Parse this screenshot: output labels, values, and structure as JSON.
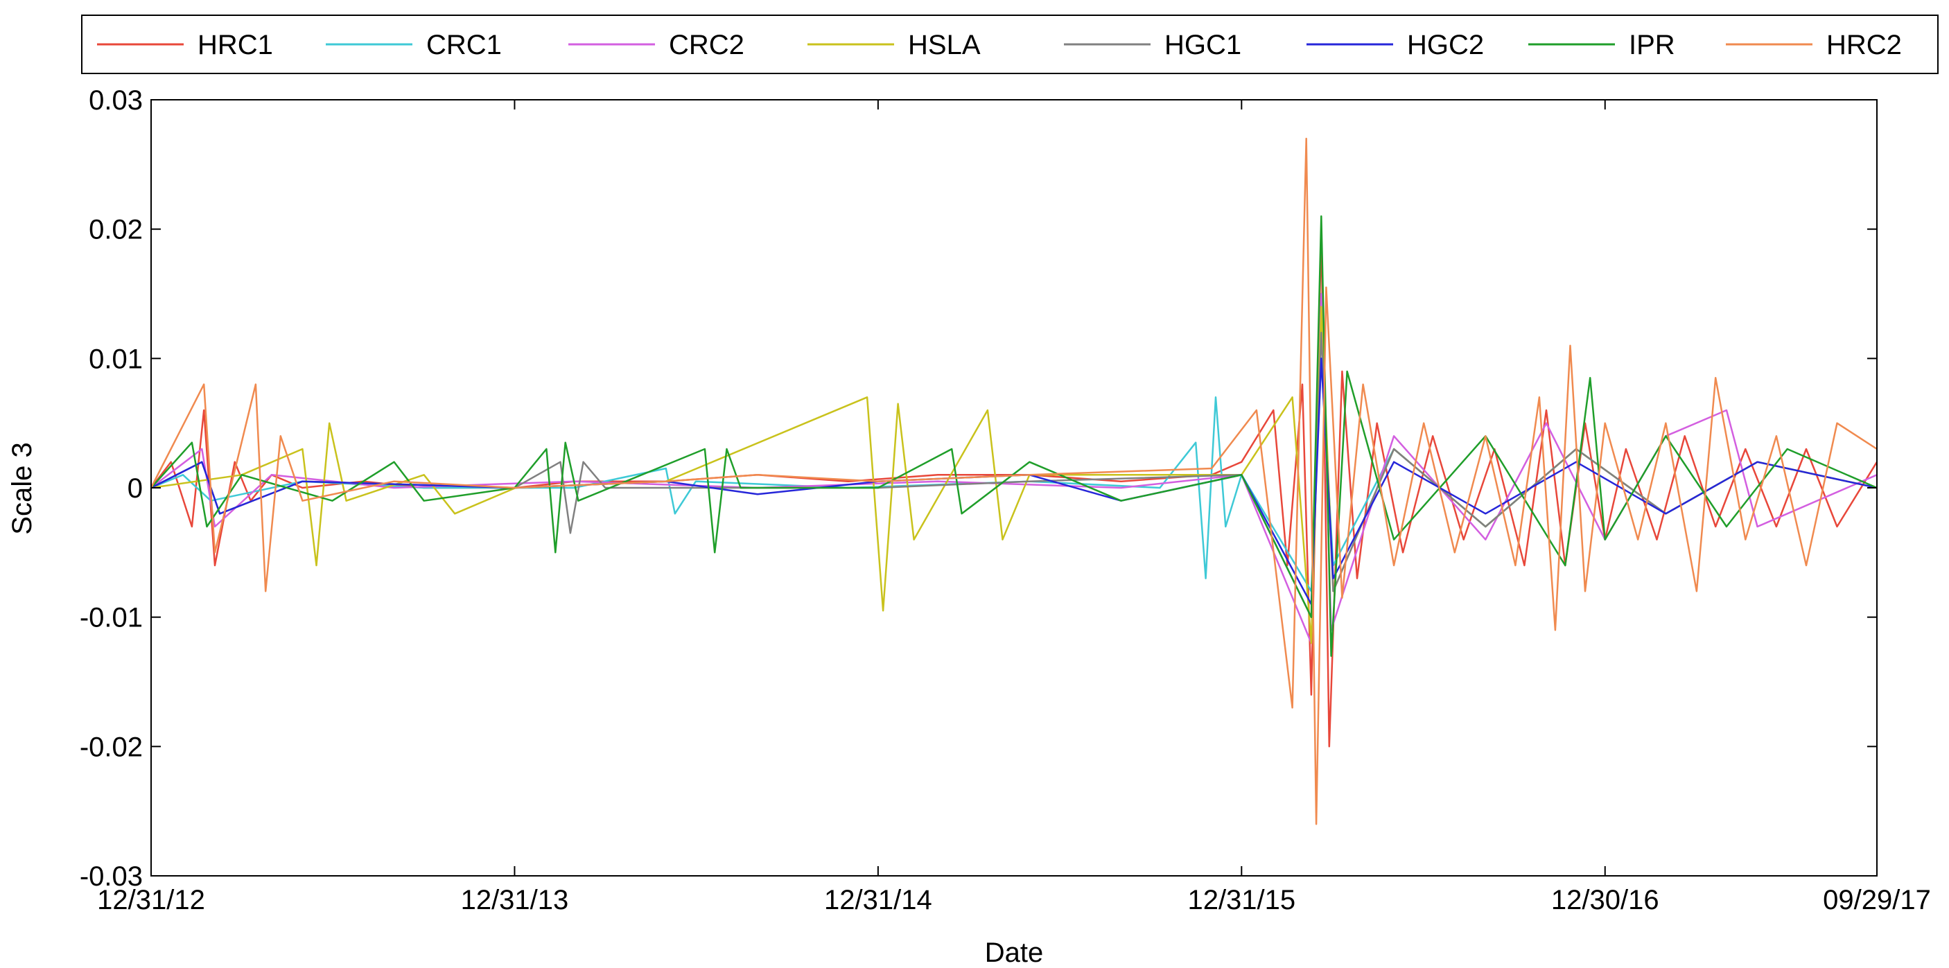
{
  "chart_data": {
    "type": "line",
    "title": "",
    "xlabel": "Date",
    "ylabel": "Scale 3",
    "ylim": [
      -0.03,
      0.03
    ],
    "xlim": [
      "2012-12-31",
      "2017-09-29"
    ],
    "grid": false,
    "legend_position": "top",
    "x_ticks": [
      {
        "date": "2012-12-31",
        "label": "12/31/12"
      },
      {
        "date": "2013-12-31",
        "label": "12/31/13"
      },
      {
        "date": "2014-12-31",
        "label": "12/31/14"
      },
      {
        "date": "2015-12-31",
        "label": "12/31/15"
      },
      {
        "date": "2016-12-30",
        "label": "12/30/16"
      },
      {
        "date": "2017-09-29",
        "label": "09/29/17"
      }
    ],
    "y_ticks": [
      {
        "value": 0.03,
        "label": "0.03"
      },
      {
        "value": 0.02,
        "label": "0.02"
      },
      {
        "value": 0.01,
        "label": "0.01"
      },
      {
        "value": 0,
        "label": "0"
      },
      {
        "value": -0.01,
        "label": "-0.01"
      },
      {
        "value": -0.02,
        "label": "-0.02"
      },
      {
        "value": -0.03,
        "label": "-0.03"
      }
    ],
    "series": [
      {
        "name": "HRC1",
        "color": "#e8473a",
        "points": [
          [
            "2012-12-31",
            0
          ],
          [
            "2013-01-20",
            0.002
          ],
          [
            "2013-02-10",
            -0.003
          ],
          [
            "2013-02-22",
            0.006
          ],
          [
            "2013-03-05",
            -0.006
          ],
          [
            "2013-03-25",
            0.002
          ],
          [
            "2013-04-10",
            -0.001
          ],
          [
            "2013-05-01",
            0.001
          ],
          [
            "2013-06-01",
            0
          ],
          [
            "2013-08-01",
            0.0005
          ],
          [
            "2013-10-01",
            0
          ],
          [
            "2014-01-01",
            0
          ],
          [
            "2014-03-01",
            0.0005
          ],
          [
            "2014-06-01",
            0.0005
          ],
          [
            "2014-09-01",
            0.001
          ],
          [
            "2014-12-01",
            0.0005
          ],
          [
            "2015-03-01",
            0.001
          ],
          [
            "2015-06-01",
            0.001
          ],
          [
            "2015-09-01",
            0.0005
          ],
          [
            "2015-12-01",
            0.001
          ],
          [
            "2015-12-31",
            0.002
          ],
          [
            "2016-02-01",
            0.006
          ],
          [
            "2016-02-15",
            -0.006
          ],
          [
            "2016-03-01",
            0.008
          ],
          [
            "2016-03-10",
            -0.016
          ],
          [
            "2016-03-20",
            0.02
          ],
          [
            "2016-03-28",
            -0.02
          ],
          [
            "2016-04-10",
            0.009
          ],
          [
            "2016-04-25",
            -0.007
          ],
          [
            "2016-05-15",
            0.005
          ],
          [
            "2016-06-10",
            -0.005
          ],
          [
            "2016-07-10",
            0.004
          ],
          [
            "2016-08-10",
            -0.004
          ],
          [
            "2016-09-10",
            0.003
          ],
          [
            "2016-10-10",
            -0.006
          ],
          [
            "2016-11-01",
            0.006
          ],
          [
            "2016-11-20",
            -0.006
          ],
          [
            "2016-12-10",
            0.005
          ],
          [
            "2016-12-30",
            -0.004
          ],
          [
            "2017-01-20",
            0.003
          ],
          [
            "2017-02-20",
            -0.004
          ],
          [
            "2017-03-20",
            0.004
          ],
          [
            "2017-04-20",
            -0.003
          ],
          [
            "2017-05-20",
            0.003
          ],
          [
            "2017-06-20",
            -0.003
          ],
          [
            "2017-07-20",
            0.003
          ],
          [
            "2017-08-20",
            -0.003
          ],
          [
            "2017-09-29",
            0.002
          ]
        ]
      },
      {
        "name": "CRC1",
        "color": "#3ec9d6",
        "points": [
          [
            "2012-12-31",
            0
          ],
          [
            "2013-02-01",
            0.001
          ],
          [
            "2013-03-01",
            -0.001
          ],
          [
            "2013-06-01",
            0.0005
          ],
          [
            "2013-10-01",
            0
          ],
          [
            "2014-03-01",
            0
          ],
          [
            "2014-06-01",
            0.0015
          ],
          [
            "2014-06-10",
            -0.002
          ],
          [
            "2014-07-01",
            0.0005
          ],
          [
            "2014-12-01",
            0
          ],
          [
            "2015-06-01",
            0.0005
          ],
          [
            "2015-10-10",
            0
          ],
          [
            "2015-11-15",
            0.0035
          ],
          [
            "2015-11-25",
            -0.007
          ],
          [
            "2015-12-05",
            0.007
          ],
          [
            "2015-12-15",
            -0.003
          ],
          [
            "2015-12-31",
            0.001
          ],
          [
            "2016-03-10",
            -0.008
          ],
          [
            "2016-03-20",
            0.01
          ],
          [
            "2016-04-01",
            -0.006
          ],
          [
            "2016-06-01",
            0.003
          ],
          [
            "2016-09-01",
            -0.003
          ],
          [
            "2016-12-01",
            0.003
          ],
          [
            "2017-03-01",
            -0.002
          ],
          [
            "2017-06-01",
            0.002
          ],
          [
            "2017-09-29",
            0
          ]
        ]
      },
      {
        "name": "CRC2",
        "color": "#d35fe0",
        "points": [
          [
            "2012-12-31",
            0
          ],
          [
            "2013-02-20",
            0.003
          ],
          [
            "2013-03-05",
            -0.003
          ],
          [
            "2013-05-01",
            0.001
          ],
          [
            "2013-09-01",
            0
          ],
          [
            "2014-03-01",
            0.0005
          ],
          [
            "2014-09-01",
            0
          ],
          [
            "2015-03-01",
            0.0005
          ],
          [
            "2015-09-01",
            0
          ],
          [
            "2015-12-31",
            0.001
          ],
          [
            "2016-03-10",
            -0.012
          ],
          [
            "2016-03-20",
            0.015
          ],
          [
            "2016-03-30",
            -0.011
          ],
          [
            "2016-06-01",
            0.004
          ],
          [
            "2016-09-01",
            -0.004
          ],
          [
            "2016-11-01",
            0.005
          ],
          [
            "2016-12-30",
            -0.004
          ],
          [
            "2017-03-01",
            0.004
          ],
          [
            "2017-05-01",
            0.006
          ],
          [
            "2017-06-01",
            -0.003
          ],
          [
            "2017-09-29",
            0.001
          ]
        ]
      },
      {
        "name": "HSLA",
        "color": "#c9c21c",
        "points": [
          [
            "2012-12-31",
            0
          ],
          [
            "2013-04-01",
            0.001
          ],
          [
            "2013-06-01",
            0.003
          ],
          [
            "2013-06-15",
            -0.006
          ],
          [
            "2013-06-28",
            0.005
          ],
          [
            "2013-07-15",
            -0.001
          ],
          [
            "2013-10-01",
            0.001
          ],
          [
            "2013-11-01",
            -0.002
          ],
          [
            "2014-01-01",
            0
          ],
          [
            "2014-06-01",
            0.0005
          ],
          [
            "2014-12-20",
            0.007
          ],
          [
            "2015-01-05",
            -0.0095
          ],
          [
            "2015-01-20",
            0.0065
          ],
          [
            "2015-02-05",
            -0.004
          ],
          [
            "2015-04-20",
            0.006
          ],
          [
            "2015-05-05",
            -0.004
          ],
          [
            "2015-06-01",
            0.001
          ],
          [
            "2015-12-31",
            0.001
          ],
          [
            "2016-02-20",
            0.007
          ],
          [
            "2016-03-10",
            -0.012
          ],
          [
            "2016-03-20",
            0.014
          ],
          [
            "2016-04-01",
            -0.008
          ],
          [
            "2016-06-01",
            0.003
          ],
          [
            "2016-09-01",
            -0.003
          ],
          [
            "2016-12-01",
            0.003
          ],
          [
            "2017-03-01",
            -0.002
          ],
          [
            "2017-06-01",
            0.002
          ],
          [
            "2017-09-29",
            0
          ]
        ]
      },
      {
        "name": "HGC1",
        "color": "#808080",
        "points": [
          [
            "2012-12-31",
            0
          ],
          [
            "2013-02-20",
            0.002
          ],
          [
            "2013-03-10",
            -0.002
          ],
          [
            "2013-06-01",
            0.0005
          ],
          [
            "2013-12-31",
            0
          ],
          [
            "2014-02-15",
            0.002
          ],
          [
            "2014-02-25",
            -0.0035
          ],
          [
            "2014-03-10",
            0.002
          ],
          [
            "2014-04-01",
            0
          ],
          [
            "2014-12-31",
            0
          ],
          [
            "2015-06-01",
            0.0005
          ],
          [
            "2015-12-31",
            0.001
          ],
          [
            "2016-03-10",
            -0.01
          ],
          [
            "2016-03-20",
            0.012
          ],
          [
            "2016-04-01",
            -0.008
          ],
          [
            "2016-06-01",
            0.003
          ],
          [
            "2016-09-01",
            -0.003
          ],
          [
            "2016-12-01",
            0.003
          ],
          [
            "2017-03-01",
            -0.002
          ],
          [
            "2017-06-01",
            0.002
          ],
          [
            "2017-09-29",
            0
          ]
        ]
      },
      {
        "name": "HGC2",
        "color": "#2626d9",
        "points": [
          [
            "2012-12-31",
            0
          ],
          [
            "2013-02-20",
            0.002
          ],
          [
            "2013-03-10",
            -0.002
          ],
          [
            "2013-06-01",
            0.0005
          ],
          [
            "2013-12-31",
            0
          ],
          [
            "2014-06-01",
            0.0005
          ],
          [
            "2014-09-01",
            -0.0005
          ],
          [
            "2014-12-31",
            0.0005
          ],
          [
            "2015-06-01",
            0.001
          ],
          [
            "2015-09-01",
            -0.001
          ],
          [
            "2015-12-31",
            0.001
          ],
          [
            "2016-03-10",
            -0.009
          ],
          [
            "2016-03-20",
            0.01
          ],
          [
            "2016-04-01",
            -0.007
          ],
          [
            "2016-06-01",
            0.002
          ],
          [
            "2016-09-01",
            -0.002
          ],
          [
            "2016-12-01",
            0.002
          ],
          [
            "2017-03-01",
            -0.002
          ],
          [
            "2017-06-01",
            0.002
          ],
          [
            "2017-09-29",
            0
          ]
        ]
      },
      {
        "name": "IPR",
        "color": "#1f9e2a",
        "points": [
          [
            "2012-12-31",
            0
          ],
          [
            "2013-02-10",
            0.0035
          ],
          [
            "2013-02-25",
            -0.003
          ],
          [
            "2013-04-01",
            0.001
          ],
          [
            "2013-07-01",
            -0.001
          ],
          [
            "2013-09-01",
            0.002
          ],
          [
            "2013-10-01",
            -0.001
          ],
          [
            "2013-12-31",
            0
          ],
          [
            "2014-02-01",
            0.003
          ],
          [
            "2014-02-10",
            -0.005
          ],
          [
            "2014-02-20",
            0.0035
          ],
          [
            "2014-03-05",
            -0.001
          ],
          [
            "2014-07-10",
            0.003
          ],
          [
            "2014-07-20",
            -0.005
          ],
          [
            "2014-08-01",
            0.003
          ],
          [
            "2014-08-15",
            0
          ],
          [
            "2014-12-31",
            0
          ],
          [
            "2015-03-15",
            0.003
          ],
          [
            "2015-03-25",
            -0.002
          ],
          [
            "2015-06-01",
            0.002
          ],
          [
            "2015-09-01",
            -0.001
          ],
          [
            "2015-12-31",
            0.001
          ],
          [
            "2016-03-10",
            -0.01
          ],
          [
            "2016-03-20",
            0.021
          ],
          [
            "2016-03-30",
            -0.013
          ],
          [
            "2016-04-15",
            0.009
          ],
          [
            "2016-06-01",
            -0.004
          ],
          [
            "2016-09-01",
            0.004
          ],
          [
            "2016-11-20",
            -0.006
          ],
          [
            "2016-12-15",
            0.0085
          ],
          [
            "2016-12-30",
            -0.004
          ],
          [
            "2017-03-01",
            0.004
          ],
          [
            "2017-05-01",
            -0.003
          ],
          [
            "2017-07-01",
            0.003
          ],
          [
            "2017-09-29",
            0
          ]
        ]
      },
      {
        "name": "HRC2",
        "color": "#f08a4f",
        "points": [
          [
            "2012-12-31",
            0
          ],
          [
            "2013-02-22",
            0.008
          ],
          [
            "2013-03-05",
            -0.005
          ],
          [
            "2013-04-15",
            0.008
          ],
          [
            "2013-04-25",
            -0.008
          ],
          [
            "2013-05-10",
            0.004
          ],
          [
            "2013-06-01",
            -0.001
          ],
          [
            "2013-09-01",
            0.0005
          ],
          [
            "2013-12-31",
            0
          ],
          [
            "2014-06-01",
            0.0005
          ],
          [
            "2014-09-01",
            0.001
          ],
          [
            "2014-12-31",
            0.0005
          ],
          [
            "2015-06-01",
            0.001
          ],
          [
            "2015-12-01",
            0.0015
          ],
          [
            "2016-01-15",
            0.006
          ],
          [
            "2016-02-20",
            -0.017
          ],
          [
            "2016-03-05",
            0.027
          ],
          [
            "2016-03-15",
            -0.026
          ],
          [
            "2016-03-25",
            0.0155
          ],
          [
            "2016-04-10",
            -0.0085
          ],
          [
            "2016-05-01",
            0.008
          ],
          [
            "2016-06-01",
            -0.006
          ],
          [
            "2016-07-01",
            0.005
          ],
          [
            "2016-08-01",
            -0.005
          ],
          [
            "2016-09-01",
            0.004
          ],
          [
            "2016-10-01",
            -0.006
          ],
          [
            "2016-10-25",
            0.007
          ],
          [
            "2016-11-10",
            -0.011
          ],
          [
            "2016-11-25",
            0.011
          ],
          [
            "2016-12-10",
            -0.008
          ],
          [
            "2016-12-30",
            0.005
          ],
          [
            "2017-02-01",
            -0.004
          ],
          [
            "2017-03-01",
            0.005
          ],
          [
            "2017-04-01",
            -0.008
          ],
          [
            "2017-04-20",
            0.0085
          ],
          [
            "2017-05-20",
            -0.004
          ],
          [
            "2017-06-20",
            0.004
          ],
          [
            "2017-07-20",
            -0.006
          ],
          [
            "2017-08-20",
            0.005
          ],
          [
            "2017-09-29",
            0.003
          ]
        ]
      }
    ]
  }
}
